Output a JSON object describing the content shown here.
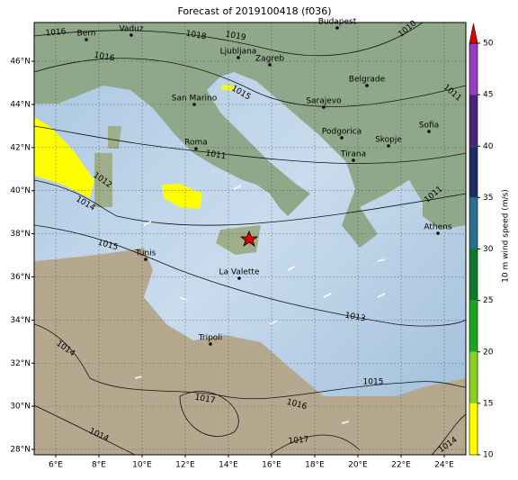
{
  "title": "Forecast of 2019100418 (f036)",
  "map": {
    "xlim": [
      5,
      25
    ],
    "ylim": [
      27.75,
      47.8
    ],
    "xticks": [
      {
        "value": 6,
        "label": "6°E"
      },
      {
        "value": 8,
        "label": "8°E"
      },
      {
        "value": 10,
        "label": "10°E"
      },
      {
        "value": 12,
        "label": "12°E"
      },
      {
        "value": 14,
        "label": "14°E"
      },
      {
        "value": 16,
        "label": "16°E"
      },
      {
        "value": 18,
        "label": "18°E"
      },
      {
        "value": 20,
        "label": "20°E"
      },
      {
        "value": 22,
        "label": "22°E"
      },
      {
        "value": 24,
        "label": "24°E"
      }
    ],
    "yticks": [
      {
        "value": 28,
        "label": "28°N"
      },
      {
        "value": 30,
        "label": "30°N"
      },
      {
        "value": 32,
        "label": "32°N"
      },
      {
        "value": 34,
        "label": "34°N"
      },
      {
        "value": 36,
        "label": "36°N"
      },
      {
        "value": 38,
        "label": "38°N"
      },
      {
        "value": 40,
        "label": "40°N"
      },
      {
        "value": 42,
        "label": "42°N"
      },
      {
        "value": 44,
        "label": "44°N"
      },
      {
        "value": 46,
        "label": "46°N"
      }
    ],
    "grid": true,
    "cities": [
      "Bern",
      "Vaduz",
      "Budapest",
      "Ljubljana",
      "Zagreb",
      "Belgrade",
      "San Marino",
      "Sarajevo",
      "Podgorica",
      "Skopje",
      "Sofia",
      "Roma",
      "Tirana",
      "Tunis",
      "La Valette",
      "Athens",
      "Tripoli"
    ],
    "isobar_labels": [
      1016,
      1018,
      1019,
      1016,
      1010,
      1011,
      1015,
      1011,
      1012,
      1014,
      1015,
      1011,
      1013,
      1015,
      1014,
      1017,
      1016,
      1017,
      1014,
      1014
    ]
  },
  "colorbar": {
    "label": "10 m wind speed (m/s)",
    "lim": [
      10,
      50
    ],
    "ticks": [
      10,
      15,
      20,
      25,
      30,
      35,
      40,
      45,
      50
    ],
    "colors": [
      "#ffff00",
      "#8ccf1f",
      "#1ea51e",
      "#0e7a2c",
      "#2b6f8e",
      "#1c2f63",
      "#4c2379",
      "#9a3ec0"
    ],
    "extend_color": "#e00000"
  }
}
